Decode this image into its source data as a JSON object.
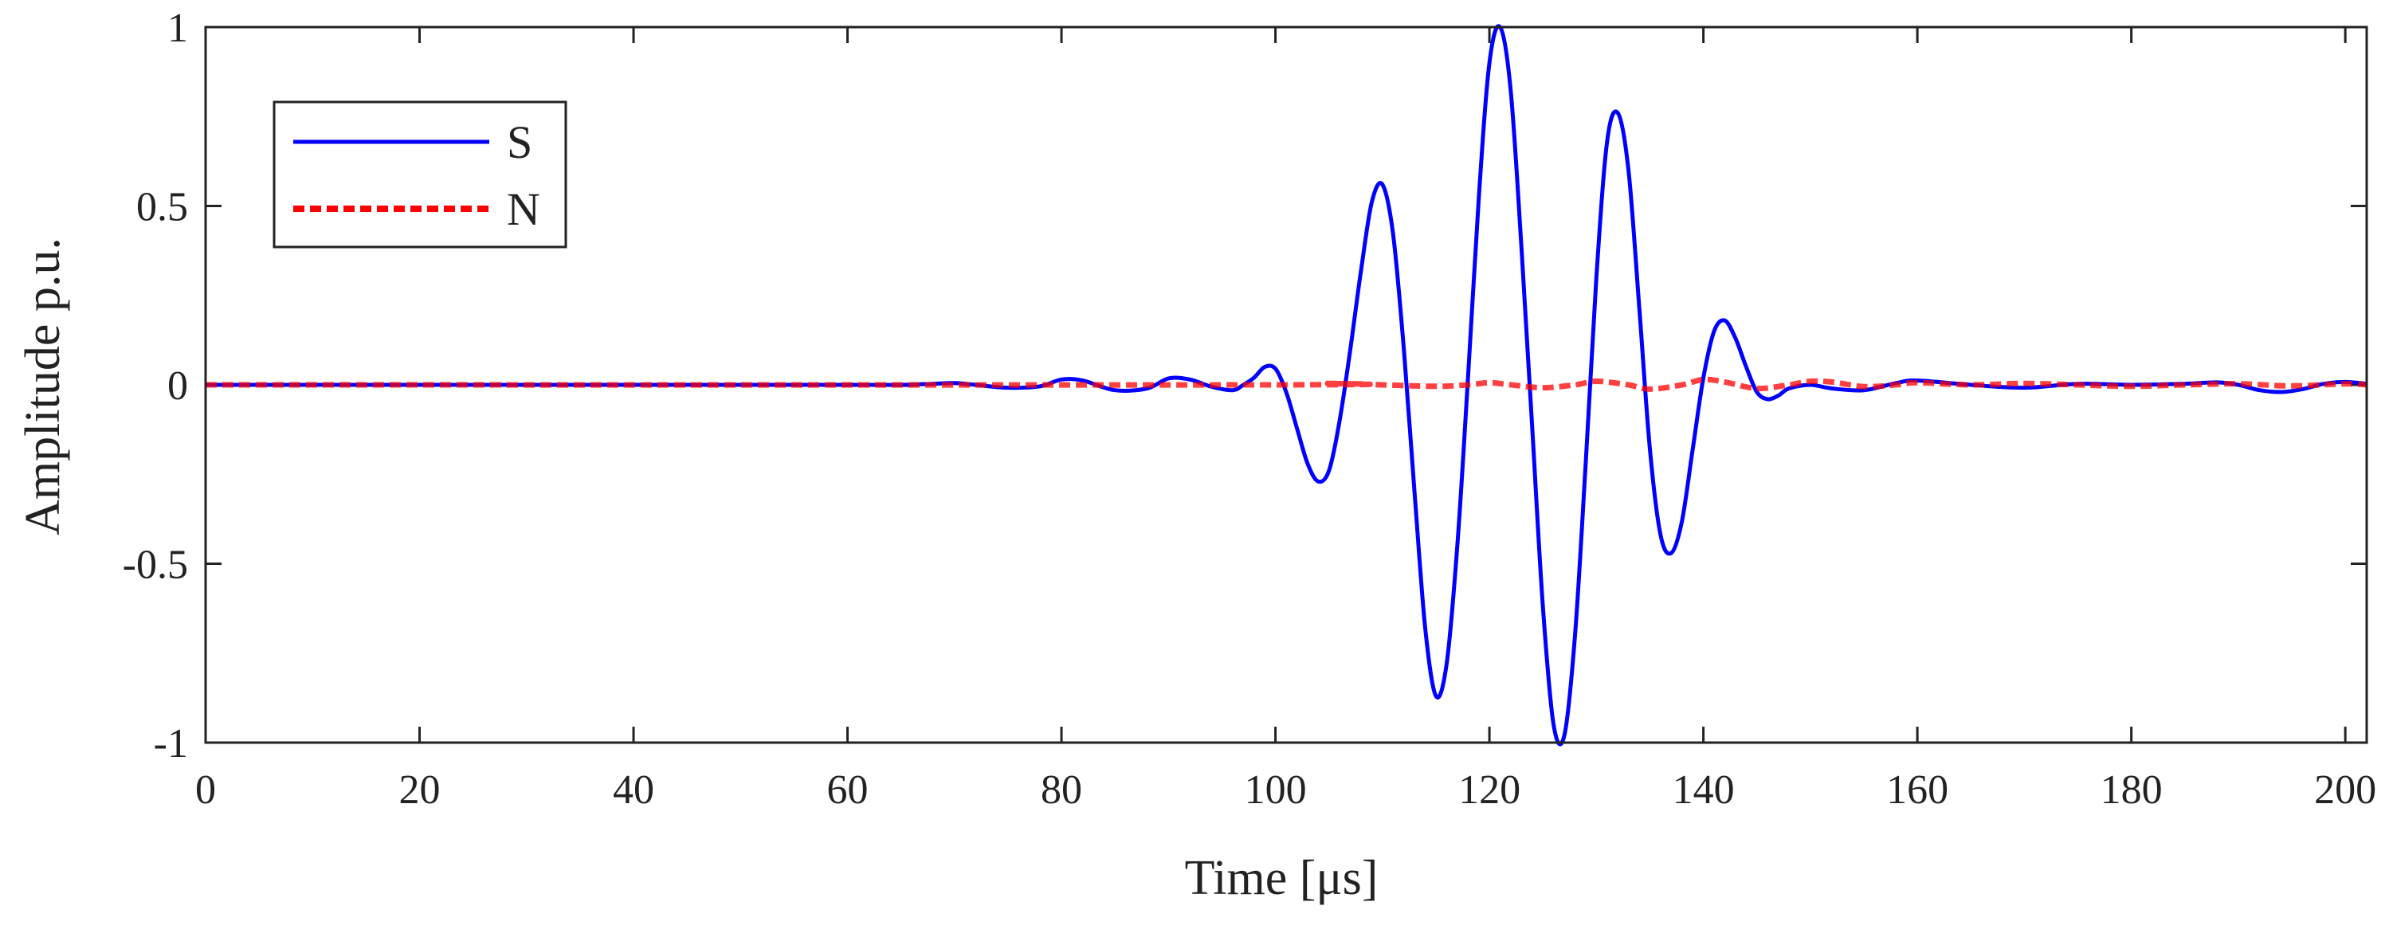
{
  "chart_data": {
    "type": "line",
    "title": "",
    "xlabel": "Time [μs]",
    "ylabel": "Amplitude p.u.",
    "xlim": [
      0,
      202
    ],
    "ylim": [
      -1,
      1
    ],
    "xticks": [
      0,
      20,
      40,
      60,
      80,
      100,
      120,
      140,
      160,
      180,
      200
    ],
    "xtick_labels": [
      "0",
      "20",
      "40",
      "60",
      "80",
      "100",
      "120",
      "140",
      "160",
      "180",
      "200"
    ],
    "yticks": [
      -1,
      -0.5,
      0,
      0.5,
      1
    ],
    "ytick_labels": [
      "-1",
      "-0.5",
      "0",
      "0.5",
      "1"
    ],
    "grid": false,
    "legend_position": "top-left",
    "series": [
      {
        "name": "S",
        "color": "#0000ff",
        "style": "solid",
        "x": [
          0,
          60,
          65,
          68,
          70,
          72,
          75,
          78,
          80,
          82,
          85,
          88,
          90,
          92,
          94,
          96,
          97,
          98,
          99,
          100,
          101,
          102,
          103,
          104,
          105,
          106,
          107,
          108,
          109,
          110,
          111,
          112,
          113,
          114,
          115,
          116,
          117,
          118,
          119,
          120,
          121,
          122,
          123,
          124,
          125,
          126,
          127,
          128,
          129,
          130,
          131,
          132,
          133,
          134,
          135,
          136,
          137,
          138,
          139,
          140,
          141,
          142,
          143,
          144,
          145,
          146,
          147,
          148,
          150,
          152,
          155,
          158,
          160,
          165,
          170,
          175,
          180,
          185,
          188,
          190,
          192,
          194,
          196,
          198,
          200,
          202
        ],
        "y": [
          0,
          0,
          0,
          0.003,
          0.005,
          0,
          -0.008,
          -0.004,
          0.015,
          0.012,
          -0.015,
          -0.01,
          0.018,
          0.015,
          -0.005,
          -0.015,
          0,
          0.02,
          0.05,
          0.045,
          -0.02,
          -0.12,
          -0.22,
          -0.27,
          -0.24,
          -0.1,
          0.1,
          0.32,
          0.51,
          0.56,
          0.42,
          0.1,
          -0.3,
          -0.68,
          -0.87,
          -0.78,
          -0.45,
          0.02,
          0.52,
          0.9,
          1.0,
          0.82,
          0.38,
          -0.12,
          -0.62,
          -0.95,
          -0.98,
          -0.7,
          -0.22,
          0.3,
          0.68,
          0.76,
          0.6,
          0.22,
          -0.18,
          -0.42,
          -0.47,
          -0.38,
          -0.18,
          0.02,
          0.15,
          0.18,
          0.13,
          0.05,
          -0.02,
          -0.04,
          -0.03,
          -0.01,
          0,
          -0.01,
          -0.015,
          0.005,
          0.012,
          0,
          -0.008,
          0.003,
          0,
          0.003,
          0.007,
          0,
          -0.015,
          -0.02,
          -0.012,
          0.003,
          0.008,
          0.003
        ]
      },
      {
        "name": "N",
        "color": "#ff0000",
        "style": "dashed",
        "x": [
          0,
          100,
          105,
          110,
          115,
          118,
          120,
          122,
          125,
          128,
          130,
          133,
          135,
          138,
          140,
          142,
          145,
          148,
          150,
          152,
          155,
          158,
          160,
          165,
          170,
          175,
          180,
          185,
          190,
          195,
          200,
          202
        ],
        "y": [
          0,
          0,
          0.004,
          0,
          -0.004,
          0,
          0.006,
          0,
          -0.008,
          0,
          0.01,
          0,
          -0.012,
          0,
          0.015,
          0.008,
          -0.01,
          0,
          0.01,
          0.008,
          -0.005,
          0,
          0.006,
          0,
          0.004,
          0,
          -0.004,
          0,
          0.003,
          -0.003,
          0.003,
          0
        ]
      }
    ]
  }
}
